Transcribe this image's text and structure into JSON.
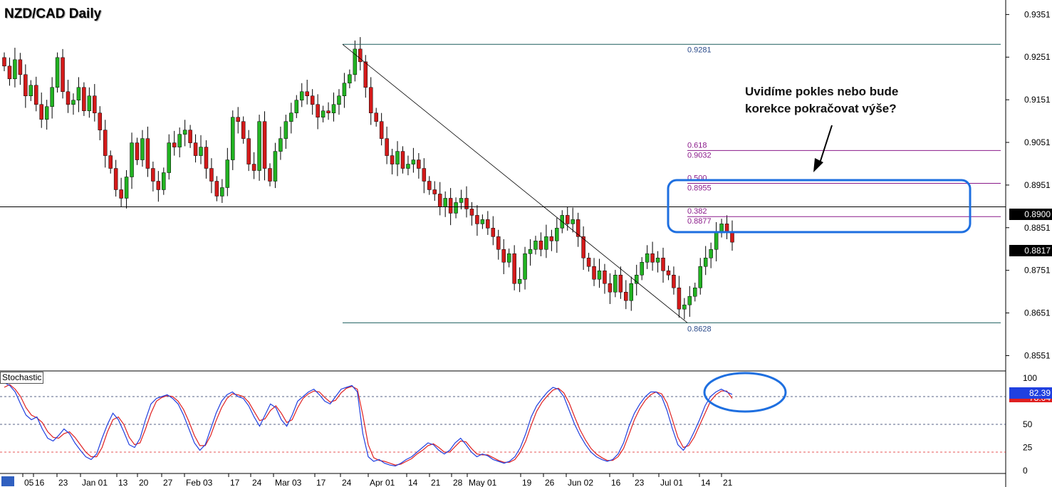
{
  "chart_data": [
    {
      "type": "candlestick",
      "title": "NZD/CAD Daily",
      "yaxis": {
        "range": [
          0.8515,
          0.9385
        ],
        "tick_labels": [
          "0.9351",
          "0.9251",
          "0.9151",
          "0.9051",
          "0.8951",
          "0.8851",
          "0.8751",
          "0.8651",
          "0.8551"
        ],
        "ticks": [
          0.9351,
          0.9251,
          0.9151,
          0.9051,
          0.8951,
          0.8851,
          0.8751,
          0.8651,
          0.8551
        ]
      },
      "xaxis": {
        "tick_labels": [
          "05",
          "16",
          "23",
          "Jan 01",
          "13",
          "20",
          "27",
          "Feb 03",
          "17",
          "24",
          "Mar 03",
          "17",
          "24",
          "Apr 01",
          "14",
          "21",
          "28",
          "May 01",
          "19",
          "26",
          "Jun 02",
          "16",
          "23",
          "Jul 01",
          "14",
          "21"
        ]
      },
      "current_price": "0.8817",
      "horizontal_level": {
        "value": 0.89,
        "label": "0.8900"
      },
      "fibonacci": {
        "high": {
          "value": 0.9281,
          "label": "0.9281"
        },
        "low": {
          "value": 0.8628,
          "label": "0.8628"
        },
        "levels": [
          {
            "ratio": "0.618",
            "value": 0.9032,
            "label": "0.9032"
          },
          {
            "ratio": "0.500",
            "value": 0.8955,
            "label": "0.8955"
          },
          {
            "ratio": "0.382",
            "value": 0.8877,
            "label": "0.8877"
          }
        ]
      },
      "annotation": "Uvidíme pokles nebo bude\nkorekce pokračovat výše?",
      "colors": {
        "up": "#22b222",
        "down": "#d41a1a",
        "fib_main": "#1f5f5f",
        "fib_levels": "#8a1a8a",
        "highlight": "#1e6fe0"
      },
      "closes": [
        0.923,
        0.92,
        0.9245,
        0.921,
        0.916,
        0.9185,
        0.914,
        0.9105,
        0.9135,
        0.918,
        0.925,
        0.917,
        0.914,
        0.915,
        0.918,
        0.9125,
        0.916,
        0.912,
        0.908,
        0.902,
        0.899,
        0.894,
        0.892,
        0.897,
        0.905,
        0.901,
        0.906,
        0.899,
        0.896,
        0.894,
        0.898,
        0.905,
        0.904,
        0.907,
        0.908,
        0.905,
        0.902,
        0.904,
        0.899,
        0.896,
        0.8925,
        0.8945,
        0.901,
        0.911,
        0.91,
        0.906,
        0.9,
        0.8985,
        0.91,
        0.899,
        0.896,
        0.903,
        0.906,
        0.91,
        0.912,
        0.915,
        0.917,
        0.916,
        0.914,
        0.911,
        0.9125,
        0.912,
        0.914,
        0.916,
        0.919,
        0.921,
        0.927,
        0.924,
        0.918,
        0.912,
        0.91,
        0.906,
        0.902,
        0.9,
        0.903,
        0.899,
        0.9,
        0.901,
        0.899,
        0.896,
        0.894,
        0.893,
        0.89,
        0.892,
        0.8885,
        0.891,
        0.892,
        0.8895,
        0.888,
        0.886,
        0.887,
        0.885,
        0.883,
        0.88,
        0.877,
        0.879,
        0.872,
        0.873,
        0.879,
        0.88,
        0.882,
        0.88,
        0.883,
        0.882,
        0.885,
        0.888,
        0.886,
        0.887,
        0.883,
        0.878,
        0.876,
        0.873,
        0.875,
        0.872,
        0.87,
        0.874,
        0.87,
        0.868,
        0.872,
        0.874,
        0.877,
        0.879,
        0.877,
        0.878,
        0.875,
        0.874,
        0.871,
        0.866,
        0.867,
        0.869,
        0.871,
        0.876,
        0.878,
        0.88,
        0.884,
        0.886,
        0.884,
        0.8817
      ],
      "stochastic": {
        "label": "Stochastic",
        "ytick_labels": [
          "100",
          "50",
          "25",
          "0"
        ],
        "yticks": [
          100,
          50,
          25,
          0
        ],
        "dashed_levels": [
          80,
          50,
          20
        ],
        "k_value_label": "82.39",
        "d_value_label": "78.04",
        "k_color": "#2040e0",
        "d_color": "#e02020",
        "k": [
          95,
          92,
          85,
          72,
          60,
          55,
          58,
          45,
          35,
          32,
          38,
          45,
          40,
          30,
          22,
          15,
          12,
          18,
          35,
          50,
          62,
          55,
          42,
          28,
          25,
          35,
          55,
          72,
          78,
          80,
          82,
          78,
          72,
          60,
          45,
          30,
          22,
          28,
          45,
          62,
          75,
          82,
          85,
          80,
          78,
          70,
          58,
          48,
          60,
          72,
          68,
          55,
          48,
          60,
          75,
          80,
          85,
          88,
          82,
          75,
          72,
          80,
          88,
          90,
          92,
          85,
          40,
          15,
          10,
          12,
          8,
          6,
          5,
          8,
          12,
          15,
          20,
          25,
          30,
          28,
          22,
          18,
          22,
          30,
          35,
          28,
          20,
          15,
          18,
          16,
          12,
          10,
          8,
          10,
          15,
          25,
          40,
          58,
          70,
          78,
          85,
          90,
          88,
          80,
          65,
          50,
          38,
          28,
          20,
          15,
          12,
          10,
          12,
          18,
          30,
          48,
          62,
          72,
          80,
          85,
          85,
          80,
          65,
          45,
          28,
          22,
          30,
          42,
          55,
          70,
          80,
          85,
          88,
          85,
          82.39
        ],
        "d": [
          90,
          93,
          88,
          80,
          68,
          60,
          57,
          52,
          42,
          36,
          35,
          40,
          42,
          36,
          28,
          20,
          15,
          15,
          25,
          42,
          55,
          58,
          50,
          36,
          28,
          30,
          45,
          62,
          75,
          79,
          81,
          80,
          75,
          66,
          53,
          38,
          27,
          27,
          38,
          54,
          68,
          78,
          83,
          82,
          80,
          74,
          64,
          54,
          56,
          65,
          70,
          62,
          52,
          55,
          68,
          78,
          83,
          86,
          85,
          79,
          74,
          76,
          84,
          89,
          91,
          88,
          60,
          28,
          14,
          11,
          10,
          8,
          6,
          7,
          10,
          13,
          18,
          22,
          27,
          29,
          25,
          20,
          20,
          26,
          32,
          31,
          24,
          18,
          17,
          17,
          14,
          11,
          9,
          9,
          12,
          20,
          32,
          49,
          64,
          74,
          81,
          87,
          89,
          84,
          73,
          58,
          44,
          33,
          24,
          18,
          14,
          11,
          11,
          15,
          24,
          39,
          55,
          67,
          76,
          82,
          85,
          83,
          73,
          55,
          36,
          25,
          27,
          36,
          49,
          62,
          75,
          82,
          86,
          86,
          78.04
        ]
      }
    }
  ]
}
